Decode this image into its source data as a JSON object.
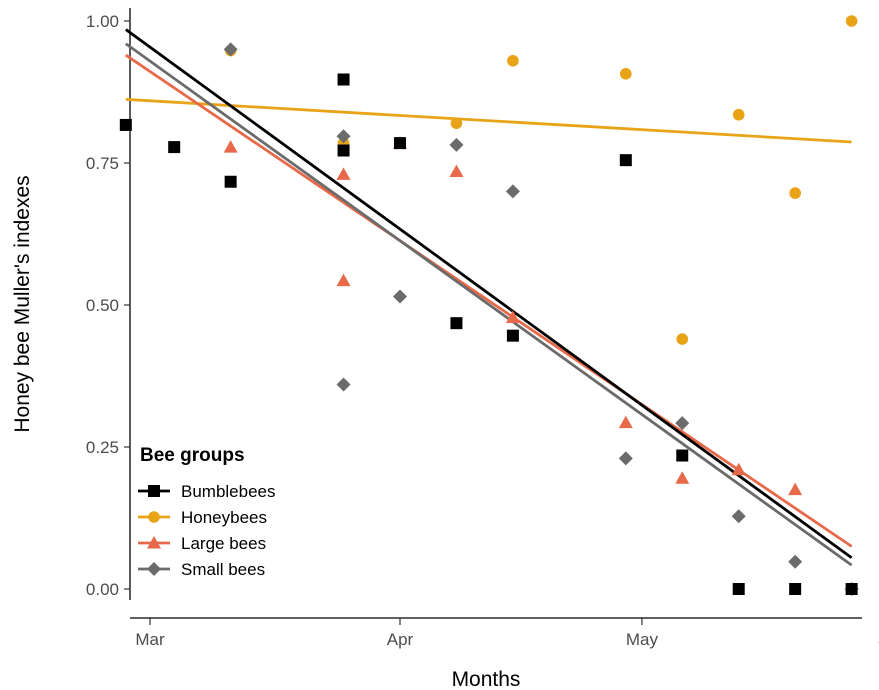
{
  "chart_data": {
    "type": "scatter",
    "xlabel": "Months",
    "ylabel": "Honey bee Muller's indexes",
    "x_tick_labels": [
      "Mar",
      "Apr",
      "May",
      "Jun"
    ],
    "x_ticks": [
      "2017-03-01",
      "2017-04-01",
      "2017-05-01",
      "2017-06-01"
    ],
    "xlim": [
      "2017-02-26",
      "2017-06-01"
    ],
    "y_tick_labels": [
      "0.00",
      "0.25",
      "0.50",
      "0.75",
      "1.00"
    ],
    "y_ticks": [
      0,
      0.25,
      0.5,
      0.75,
      1.0
    ],
    "ylim": [
      0,
      1.0
    ],
    "legend": {
      "title": "Bee groups",
      "position": "bottom-left"
    },
    "grid": false,
    "series": [
      {
        "name": "Bumblebees",
        "color": "#000000",
        "marker": "square",
        "points": [
          [
            "2017-02-26",
            0.817
          ],
          [
            "2017-03-04",
            0.778
          ],
          [
            "2017-03-11",
            0.717
          ],
          [
            "2017-03-25",
            0.897
          ],
          [
            "2017-03-25",
            0.772
          ],
          [
            "2017-04-01",
            0.785
          ],
          [
            "2017-04-08",
            0.468
          ],
          [
            "2017-04-15",
            0.446
          ],
          [
            "2017-04-29",
            0.755
          ],
          [
            "2017-05-06",
            0.235
          ],
          [
            "2017-05-13",
            0.0
          ],
          [
            "2017-05-20",
            0.0
          ],
          [
            "2017-05-27",
            0.0
          ]
        ],
        "trend": [
          [
            "2017-02-26",
            0.985
          ],
          [
            "2017-05-27",
            0.055
          ]
        ]
      },
      {
        "name": "Honeybees",
        "color": "#e8a317",
        "marker": "circle",
        "points": [
          [
            "2017-03-11",
            0.948
          ],
          [
            "2017-03-25",
            0.785
          ],
          [
            "2017-04-01",
            0.785
          ],
          [
            "2017-04-08",
            0.82
          ],
          [
            "2017-04-15",
            0.93
          ],
          [
            "2017-04-29",
            0.907
          ],
          [
            "2017-05-06",
            0.44
          ],
          [
            "2017-05-13",
            0.835
          ],
          [
            "2017-05-20",
            0.697
          ],
          [
            "2017-05-27",
            1.0
          ]
        ],
        "trend": [
          [
            "2017-02-26",
            0.862
          ],
          [
            "2017-05-27",
            0.787
          ]
        ]
      },
      {
        "name": "Large bees",
        "color": "#e8694a",
        "marker": "triangle",
        "points": [
          [
            "2017-03-11",
            0.778
          ],
          [
            "2017-03-25",
            0.73
          ],
          [
            "2017-03-25",
            0.543
          ],
          [
            "2017-04-01",
            0.785
          ],
          [
            "2017-04-08",
            0.735
          ],
          [
            "2017-04-15",
            0.478
          ],
          [
            "2017-04-29",
            0.293
          ],
          [
            "2017-05-06",
            0.195
          ],
          [
            "2017-05-13",
            0.21
          ],
          [
            "2017-05-20",
            0.175
          ]
        ],
        "trend": [
          [
            "2017-02-26",
            0.94
          ],
          [
            "2017-05-27",
            0.075
          ]
        ]
      },
      {
        "name": "Small bees",
        "color": "#6b6b6b",
        "marker": "diamond",
        "points": [
          [
            "2017-03-11",
            0.95
          ],
          [
            "2017-03-25",
            0.797
          ],
          [
            "2017-03-25",
            0.36
          ],
          [
            "2017-04-01",
            0.515
          ],
          [
            "2017-04-08",
            0.782
          ],
          [
            "2017-04-15",
            0.7
          ],
          [
            "2017-04-29",
            0.23
          ],
          [
            "2017-05-06",
            0.292
          ],
          [
            "2017-05-13",
            0.128
          ],
          [
            "2017-05-20",
            0.048
          ],
          [
            "2017-05-27",
            0.0
          ]
        ],
        "trend": [
          [
            "2017-02-26",
            0.96
          ],
          [
            "2017-05-27",
            0.042
          ]
        ]
      }
    ]
  }
}
